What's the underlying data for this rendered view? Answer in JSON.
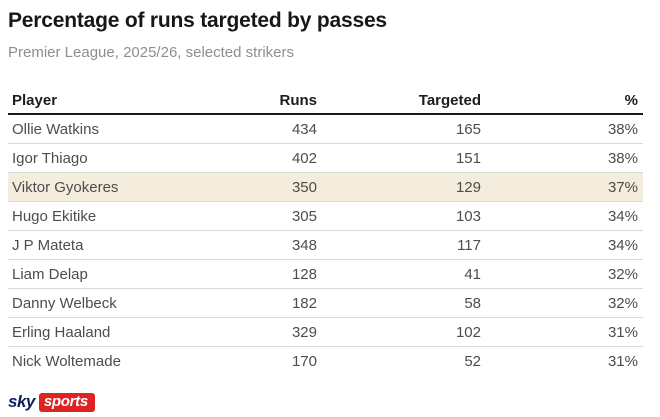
{
  "header": {
    "title": "Percentage of runs targeted by passes",
    "subtitle": "Premier League, 2025/26, selected strikers"
  },
  "chart_data": {
    "type": "table",
    "title": "Percentage of runs targeted by passes",
    "subtitle": "Premier League, 2025/26, selected strikers",
    "columns": [
      "Player",
      "Runs",
      "Targeted",
      "%"
    ],
    "rows": [
      [
        "Ollie Watkins",
        434,
        165,
        "38%"
      ],
      [
        "Igor Thiago",
        402,
        151,
        "38%"
      ],
      [
        "Viktor Gyokeres",
        350,
        129,
        "37%"
      ],
      [
        "Hugo Ekitike",
        305,
        103,
        "34%"
      ],
      [
        "J P Mateta",
        348,
        117,
        "34%"
      ],
      [
        "Liam Delap",
        128,
        41,
        "32%"
      ],
      [
        "Danny Welbeck",
        182,
        58,
        "32%"
      ],
      [
        "Erling Haaland",
        329,
        102,
        "31%"
      ],
      [
        "Nick Woltemade",
        170,
        52,
        "31%"
      ]
    ],
    "highlighted_row": "Viktor Gyokeres"
  },
  "colors": {
    "highlight_row_bg": "#f4edde",
    "header_rule": "#1b1b1b",
    "row_divider": "#d9d9d9",
    "sky_navy": "#0b205b",
    "sky_red": "#dd2423"
  },
  "branding": {
    "sky": "sky",
    "sports": "sports"
  }
}
